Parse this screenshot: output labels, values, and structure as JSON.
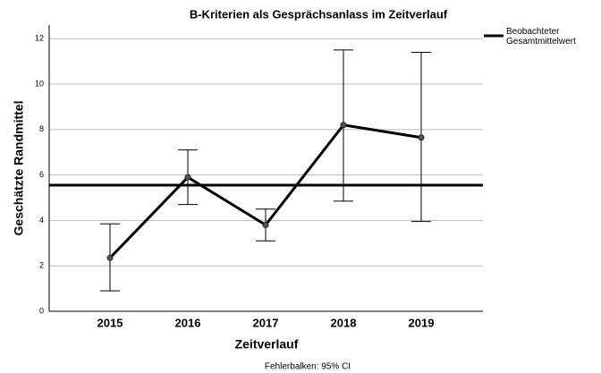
{
  "chart_data": {
    "type": "line",
    "title": "B-Kriterien als Gesprächsanlass im Zeitverlauf",
    "x_label": "Zeitverlauf",
    "y_label": "Geschätzte Randmittel",
    "footnote": "Fehlerbalken: 95% CI",
    "categories": [
      "2015",
      "2016",
      "2017",
      "2018",
      "2019"
    ],
    "series": [
      {
        "name": "Geschätzte Randmittel",
        "color": "#000000",
        "values": [
          2.35,
          5.9,
          3.8,
          8.2,
          7.65
        ],
        "ci_low": [
          0.9,
          4.7,
          3.1,
          4.85,
          3.95
        ],
        "ci_high": [
          3.85,
          7.1,
          4.5,
          11.5,
          11.4
        ]
      }
    ],
    "reference_line": {
      "name": "Beobachteter Gesamtmittelwert",
      "value": 5.55,
      "color": "#000000"
    },
    "ylim": [
      0,
      12.6
    ],
    "yticks": [
      0,
      2,
      4,
      6,
      8,
      10,
      12
    ],
    "grid": true,
    "legend": "top-right"
  }
}
